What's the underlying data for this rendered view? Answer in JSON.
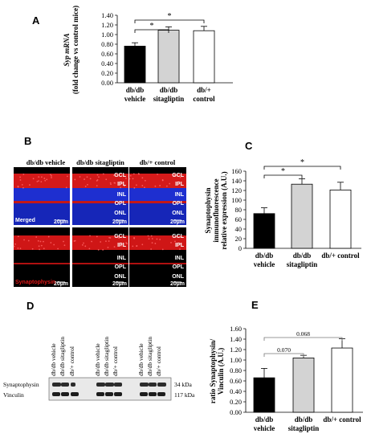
{
  "panels": {
    "A": "A",
    "B": "B",
    "C": "C",
    "D": "D",
    "E": "E"
  },
  "chart_data": [
    {
      "id": "A",
      "type": "bar",
      "ylabel_line1": "Syp mRNA",
      "ylabel_line2": "(fold change vs control mice)",
      "ylim": [
        0,
        1.4
      ],
      "yticks": [
        "0.00",
        "0.20",
        "0.40",
        "0.60",
        "0.80",
        "1.00",
        "1.20",
        "1.40"
      ],
      "categories": [
        [
          "db/db",
          "vehicle"
        ],
        [
          "db/db",
          "sitagliptin"
        ],
        [
          "db/+",
          "control"
        ]
      ],
      "values": [
        0.76,
        1.09,
        1.08
      ],
      "errors": [
        0.07,
        0.07,
        0.09
      ],
      "colors": [
        "#000000",
        "#d3d3d3",
        "#ffffff"
      ],
      "annotations": [
        "*",
        "*"
      ]
    },
    {
      "id": "C",
      "type": "bar",
      "ylabel_line1": "Synaptophysin",
      "ylabel_line2": "immunofluorescence",
      "ylabel_line3": "relative expression (A.U.)",
      "ylim": [
        0,
        160
      ],
      "yticks": [
        "0",
        "20",
        "40",
        "60",
        "80",
        "100",
        "120",
        "140",
        "160"
      ],
      "categories": [
        [
          "db/db",
          "vehicle"
        ],
        [
          "db/db",
          "sitagliptin"
        ],
        [
          "db/+ control",
          ""
        ]
      ],
      "values": [
        72,
        133,
        121
      ],
      "errors": [
        12,
        11,
        16
      ],
      "colors": [
        "#000000",
        "#d3d3d3",
        "#ffffff"
      ],
      "annotations": [
        "*",
        "*"
      ]
    },
    {
      "id": "E",
      "type": "bar",
      "ylabel_line1": "ratio  Synaptophysin/",
      "ylabel_line2": "Vinculin (A.U.)",
      "ylim": [
        0,
        1.6
      ],
      "yticks": [
        "0.00",
        "0.20",
        "0.40",
        "0.60",
        "0.80",
        "1.00",
        "1.20",
        "1.40",
        "1.60"
      ],
      "categories": [
        [
          "db/db",
          "vehicle"
        ],
        [
          "db/db",
          "sitagliptin"
        ],
        [
          "db/+ control",
          ""
        ]
      ],
      "values": [
        0.66,
        1.04,
        1.23
      ],
      "errors": [
        0.18,
        0.05,
        0.18
      ],
      "colors": [
        "#000000",
        "#d3d3d3",
        "#ffffff"
      ],
      "annotations": [
        "0.070",
        "0.068"
      ]
    }
  ],
  "micrographs": {
    "titles": [
      "db/db vehicle",
      "db/db sitagliptin",
      "db/+ control"
    ],
    "row_labels": [
      "Merged",
      "Synaptophysin"
    ],
    "layers_top": [
      "GCL",
      "IPL",
      "INL",
      "OPL",
      "ONL"
    ],
    "layers_bottom": [
      "GCL",
      "IPL",
      "INL",
      "OPL",
      "ONL"
    ],
    "scale": "20µm"
  },
  "blot": {
    "lane_labels": [
      "db/db vehicle",
      "db/db sitagliptin",
      "db/+ control",
      "db/db vehicle",
      "db/db sitagliptin",
      "db/+ control",
      "db/db vehicle",
      "db/db sitagliptin",
      "db/+ control"
    ],
    "bands": [
      "Synaptophysin",
      "Vinculin"
    ],
    "sizes": [
      "34 kDa",
      "117 kDa"
    ]
  }
}
